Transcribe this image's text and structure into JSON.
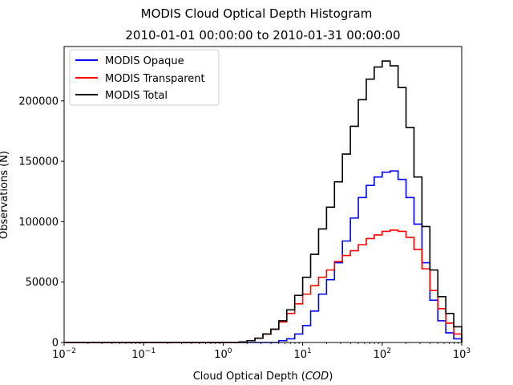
{
  "chart_data": {
    "type": "line",
    "title": "MODIS Cloud Optical Depth Histogram",
    "subtitle": "2010-01-01 00:00:00 to 2010-01-31 00:00:00",
    "xlabel_main": "Cloud Optical Depth (",
    "xlabel_italic": "COD",
    "xlabel_end": ")",
    "ylabel": "Observations (N)",
    "x_scale": "log",
    "xlim": [
      0.01,
      1000
    ],
    "ylim": [
      0,
      245000
    ],
    "step_style": "histogram-step",
    "x_ticks": [
      {
        "base": "10",
        "exp": "−2"
      },
      {
        "base": "10",
        "exp": "−1"
      },
      {
        "base": "10",
        "exp": "0"
      },
      {
        "base": "10",
        "exp": "1"
      },
      {
        "base": "10",
        "exp": "2"
      },
      {
        "base": "10",
        "exp": "3"
      }
    ],
    "y_ticks": [
      "0",
      "50000",
      "100000",
      "150000",
      "200000"
    ],
    "legend_position": "top-left",
    "bin_edges_log10": [
      -2.0,
      -1.9,
      -1.8,
      -1.7,
      -1.6,
      -1.5,
      -1.4,
      -1.3,
      -1.2,
      -1.1,
      -1.0,
      -0.9,
      -0.8,
      -0.7,
      -0.6,
      -0.5,
      -0.4,
      -0.3,
      -0.2,
      -0.1,
      0.0,
      0.1,
      0.2,
      0.3,
      0.4,
      0.5,
      0.6,
      0.7,
      0.8,
      0.9,
      1.0,
      1.1,
      1.2,
      1.3,
      1.4,
      1.5,
      1.6,
      1.7,
      1.8,
      1.9,
      2.0,
      2.1,
      2.2,
      2.3,
      2.4,
      2.5,
      2.6,
      2.7,
      2.8,
      2.9,
      3.0
    ],
    "series": [
      {
        "name": "MODIS Opaque",
        "color": "#0000ff",
        "values": [
          0,
          0,
          0,
          0,
          0,
          0,
          0,
          0,
          0,
          0,
          0,
          0,
          0,
          0,
          0,
          0,
          0,
          0,
          0,
          0,
          0,
          0,
          0,
          0,
          0,
          0,
          0,
          1500,
          3000,
          7000,
          14000,
          26000,
          40000,
          52000,
          66000,
          84000,
          103000,
          120000,
          130000,
          137000,
          141000,
          142000,
          135000,
          120000,
          98000,
          66000,
          35000,
          18000,
          8000,
          3000,
          0
        ]
      },
      {
        "name": "MODIS Transparent",
        "color": "#ff0000",
        "values": [
          0,
          0,
          0,
          0,
          0,
          0,
          0,
          0,
          0,
          0,
          0,
          0,
          0,
          0,
          0,
          0,
          0,
          0,
          0,
          0,
          0,
          0,
          500,
          1500,
          3500,
          7000,
          11000,
          17000,
          24000,
          32000,
          40000,
          47000,
          54000,
          60000,
          67000,
          72000,
          76000,
          81000,
          86000,
          89000,
          92000,
          93000,
          92000,
          87000,
          77000,
          61000,
          43000,
          28000,
          16000,
          7000,
          0
        ]
      },
      {
        "name": "MODIS Total",
        "color": "#000000",
        "values": [
          0,
          0,
          0,
          0,
          0,
          0,
          0,
          0,
          0,
          0,
          0,
          0,
          0,
          0,
          0,
          0,
          0,
          0,
          0,
          0,
          0,
          0,
          500,
          1500,
          3500,
          7000,
          11000,
          18000,
          27000,
          39000,
          54000,
          73000,
          94000,
          112000,
          133000,
          156000,
          179000,
          201000,
          218000,
          228000,
          233000,
          229000,
          211000,
          178000,
          137000,
          96000,
          60000,
          38000,
          24000,
          13000,
          0
        ]
      }
    ]
  },
  "legend": {
    "items": [
      {
        "label": "MODIS Opaque",
        "color": "#0000ff"
      },
      {
        "label": "MODIS Transparent",
        "color": "#ff0000"
      },
      {
        "label": "MODIS Total",
        "color": "#000000"
      }
    ]
  }
}
